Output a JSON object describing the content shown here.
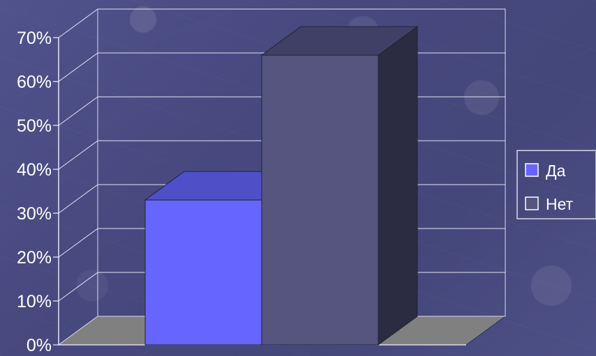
{
  "chart_data": {
    "type": "bar",
    "categories": [
      ""
    ],
    "series": [
      {
        "name": "Да",
        "values": [
          33
        ]
      },
      {
        "name": "Нет",
        "values": [
          66
        ]
      }
    ],
    "y_ticks": [
      "0%",
      "10%",
      "20%",
      "30%",
      "40%",
      "50%",
      "60%",
      "70%"
    ],
    "ylim": [
      0,
      70
    ],
    "grid": true,
    "legend_position": "right",
    "three_dimensional": true,
    "colors": {
      "background": "#474A82",
      "Да": "#6666FF",
      "Нет": "#55557F",
      "floor": "#808080",
      "grid": "#FFFFFF"
    }
  },
  "legend": {
    "items": [
      "Да",
      "Нет"
    ]
  }
}
